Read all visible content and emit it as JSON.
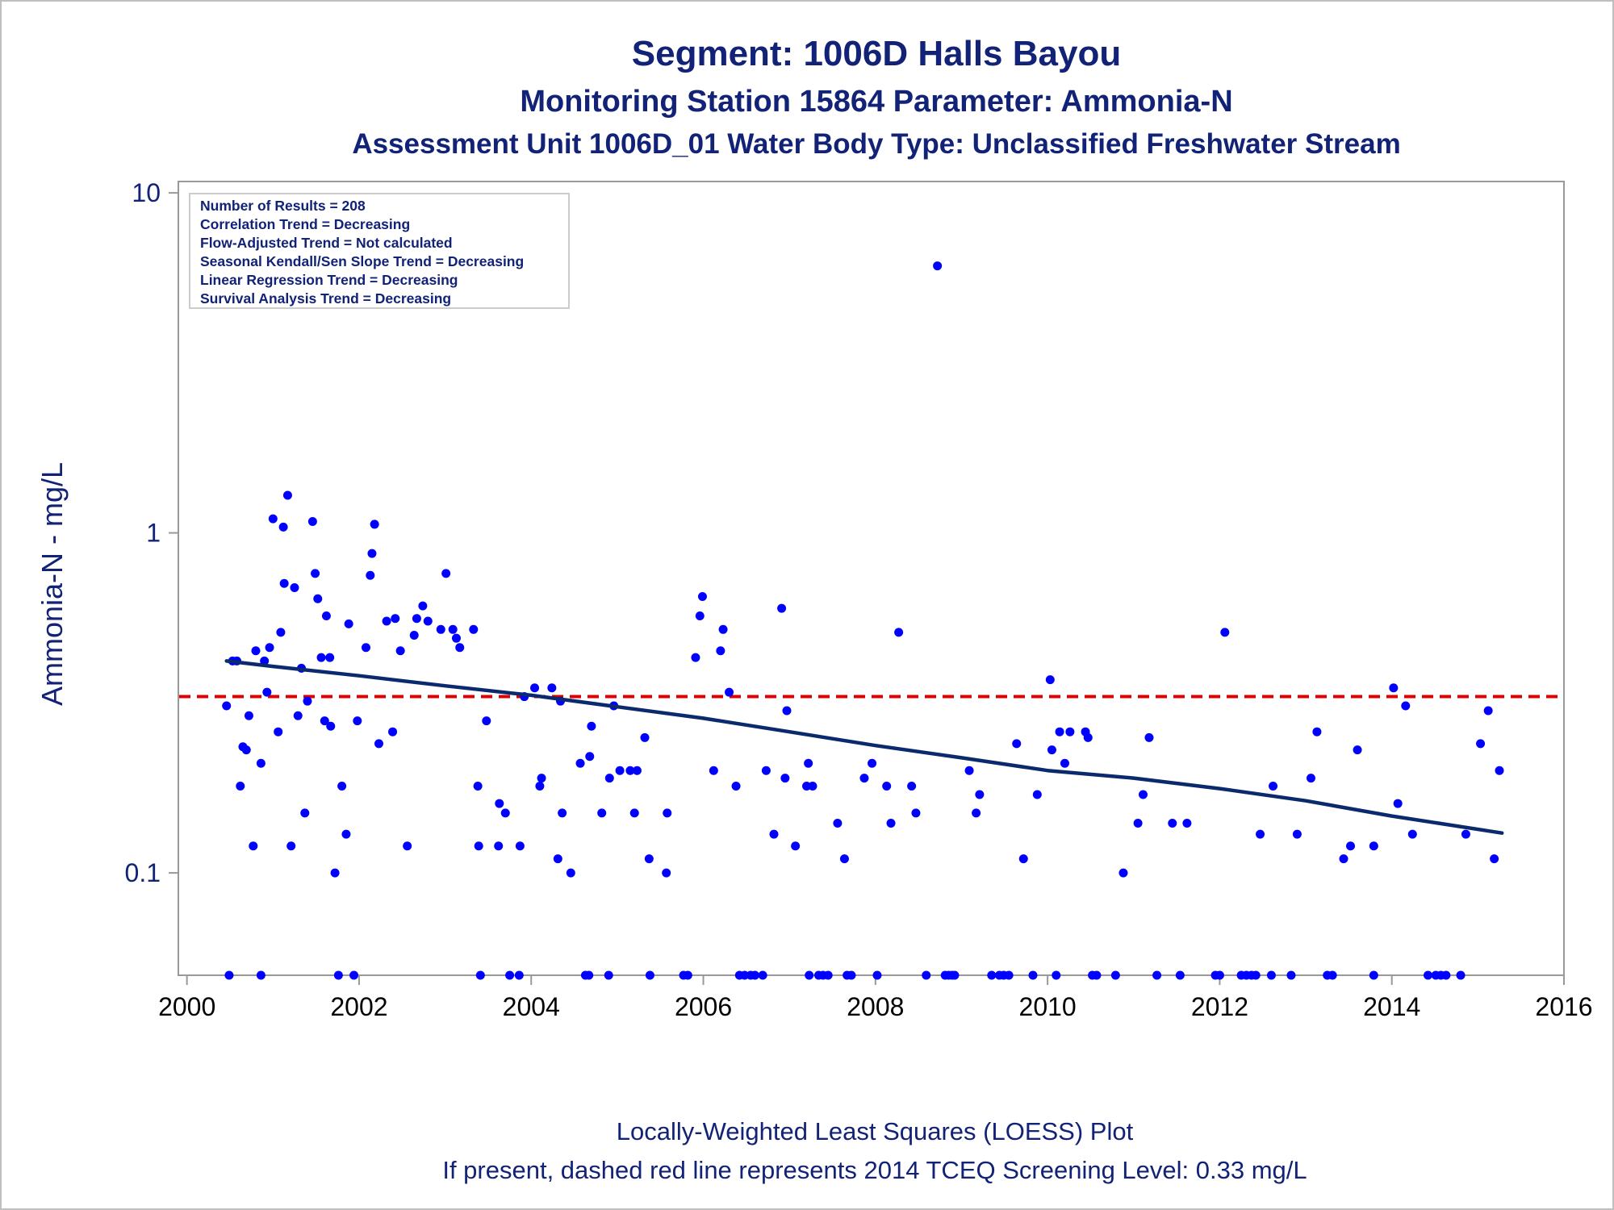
{
  "titles": {
    "line1": "Segment: 1006D  Halls Bayou",
    "line2": "Monitoring Station 15864 Parameter: Ammonia-N",
    "line3": "Assessment Unit 1006D_01   Water Body Type: Unclassified Freshwater Stream"
  },
  "footer": {
    "line1": "Locally-Weighted Least Squares (LOESS) Plot",
    "line2": "If present, dashed red line represents 2014 TCEQ Screening Level: 0.33 mg/L"
  },
  "legend_box": {
    "lines": [
      "Number of Results = 208",
      "Correlation Trend = Decreasing",
      "Flow-Adjusted Trend = Not calculated",
      "Seasonal Kendall/Sen Slope Trend = Decreasing",
      "Linear Regression Trend = Decreasing",
      "Survival Analysis Trend = Decreasing"
    ]
  },
  "colors": {
    "points": "#0000ff",
    "loess": "#0b2a6e",
    "screening": "#dd0000",
    "text": "#112277"
  },
  "chart_data": {
    "type": "scatter",
    "xlabel": "",
    "ylabel": "Ammonia-N - mg/L",
    "xlim": [
      1999.9,
      2016.0
    ],
    "ylim": [
      0.05,
      10.8
    ],
    "y_scale": "log",
    "x_ticks": [
      2000,
      2002,
      2004,
      2006,
      2008,
      2010,
      2012,
      2014,
      2016
    ],
    "x_tick_labels": [
      "2000",
      "2002",
      "2004",
      "2006",
      "2008",
      "2010",
      "2012",
      "2014",
      "2016"
    ],
    "y_ticks": [
      0.1,
      1,
      10
    ],
    "y_tick_labels": [
      "0.1",
      "1",
      "10"
    ],
    "screening_level": 0.33,
    "grid": false,
    "legend_position": "top-left",
    "series": [
      {
        "kind": "scatter",
        "points": [
          [
            2000.46,
            0.31
          ],
          [
            2000.53,
            0.42
          ],
          [
            2000.58,
            0.42
          ],
          [
            2000.62,
            0.18
          ],
          [
            2000.65,
            0.235
          ],
          [
            2000.69,
            0.23
          ],
          [
            2000.72,
            0.29
          ],
          [
            2000.77,
            0.12
          ],
          [
            2000.8,
            0.45
          ],
          [
            2000.86,
            0.21
          ],
          [
            2000.9,
            0.42
          ],
          [
            2000.93,
            0.34
          ],
          [
            2000.96,
            0.46
          ],
          [
            2001.0,
            1.1
          ],
          [
            2001.06,
            0.26
          ],
          [
            2001.09,
            0.51
          ],
          [
            2001.12,
            1.04
          ],
          [
            2001.13,
            0.71
          ],
          [
            2001.17,
            1.29
          ],
          [
            2001.21,
            0.12
          ],
          [
            2001.25,
            0.69
          ],
          [
            2001.29,
            0.29
          ],
          [
            2001.33,
            0.4
          ],
          [
            2001.37,
            0.15
          ],
          [
            2001.4,
            0.32
          ],
          [
            2001.46,
            1.08
          ],
          [
            2001.49,
            0.76
          ],
          [
            2001.52,
            0.64
          ],
          [
            2001.56,
            0.43
          ],
          [
            2001.6,
            0.28
          ],
          [
            2001.62,
            0.57
          ],
          [
            2001.66,
            0.43
          ],
          [
            2001.67,
            0.27
          ],
          [
            2001.72,
            0.1
          ],
          [
            2001.8,
            0.18
          ],
          [
            2001.85,
            0.13
          ],
          [
            2001.88,
            0.54
          ],
          [
            2001.98,
            0.28
          ],
          [
            2002.08,
            0.46
          ],
          [
            2002.13,
            0.75
          ],
          [
            2002.15,
            0.87
          ],
          [
            2002.18,
            1.06
          ],
          [
            2002.23,
            0.24
          ],
          [
            2002.32,
            0.55
          ],
          [
            2002.39,
            0.26
          ],
          [
            2002.42,
            0.56
          ],
          [
            2002.48,
            0.45
          ],
          [
            2002.56,
            0.12
          ],
          [
            2002.64,
            0.5
          ],
          [
            2002.67,
            0.56
          ],
          [
            2002.74,
            0.61
          ],
          [
            2002.8,
            0.55
          ],
          [
            2002.95,
            0.52
          ],
          [
            2003.01,
            0.76
          ],
          [
            2003.09,
            0.52
          ],
          [
            2003.13,
            0.49
          ],
          [
            2003.17,
            0.46
          ],
          [
            2003.33,
            0.52
          ],
          [
            2003.38,
            0.18
          ],
          [
            2003.39,
            0.12
          ],
          [
            2003.48,
            0.28
          ],
          [
            2003.62,
            0.12
          ],
          [
            2003.63,
            0.16
          ],
          [
            2003.7,
            0.15
          ],
          [
            2003.87,
            0.12
          ],
          [
            2003.92,
            0.33
          ],
          [
            2004.04,
            0.35
          ],
          [
            2004.1,
            0.18
          ],
          [
            2004.12,
            0.19
          ],
          [
            2004.24,
            0.35
          ],
          [
            2004.31,
            0.11
          ],
          [
            2004.34,
            0.32
          ],
          [
            2004.36,
            0.15
          ],
          [
            2004.46,
            0.1
          ],
          [
            2004.57,
            0.21
          ],
          [
            2004.68,
            0.22
          ],
          [
            2004.7,
            0.27
          ],
          [
            2004.82,
            0.15
          ],
          [
            2004.91,
            0.19
          ],
          [
            2004.96,
            0.31
          ],
          [
            2005.03,
            0.2
          ],
          [
            2005.15,
            0.2
          ],
          [
            2005.2,
            0.15
          ],
          [
            2005.23,
            0.2
          ],
          [
            2005.32,
            0.25
          ],
          [
            2005.37,
            0.11
          ],
          [
            2005.57,
            0.1
          ],
          [
            2005.58,
            0.15
          ],
          [
            2005.91,
            0.43
          ],
          [
            2005.96,
            0.57
          ],
          [
            2005.99,
            0.65
          ],
          [
            2006.12,
            0.2
          ],
          [
            2006.2,
            0.45
          ],
          [
            2006.23,
            0.52
          ],
          [
            2006.3,
            0.34
          ],
          [
            2006.38,
            0.18
          ],
          [
            2006.73,
            0.2
          ],
          [
            2006.82,
            0.13
          ],
          [
            2006.91,
            0.6
          ],
          [
            2006.95,
            0.19
          ],
          [
            2006.97,
            0.3
          ],
          [
            2007.07,
            0.12
          ],
          [
            2007.2,
            0.18
          ],
          [
            2007.22,
            0.21
          ],
          [
            2007.27,
            0.18
          ],
          [
            2007.56,
            0.14
          ],
          [
            2007.64,
            0.11
          ],
          [
            2007.87,
            0.19
          ],
          [
            2007.96,
            0.21
          ],
          [
            2008.13,
            0.18
          ],
          [
            2008.18,
            0.14
          ],
          [
            2008.27,
            0.51
          ],
          [
            2008.42,
            0.18
          ],
          [
            2008.47,
            0.15
          ],
          [
            2008.72,
            6.1
          ],
          [
            2009.09,
            0.2
          ],
          [
            2009.17,
            0.15
          ],
          [
            2009.21,
            0.17
          ],
          [
            2009.64,
            0.24
          ],
          [
            2009.72,
            0.11
          ],
          [
            2009.88,
            0.17
          ],
          [
            2010.03,
            0.37
          ],
          [
            2010.05,
            0.23
          ],
          [
            2010.14,
            0.26
          ],
          [
            2010.2,
            0.21
          ],
          [
            2010.26,
            0.26
          ],
          [
            2010.44,
            0.26
          ],
          [
            2010.47,
            0.25
          ],
          [
            2010.88,
            0.1
          ],
          [
            2011.05,
            0.14
          ],
          [
            2011.11,
            0.17
          ],
          [
            2011.18,
            0.25
          ],
          [
            2011.45,
            0.14
          ],
          [
            2011.62,
            0.14
          ],
          [
            2012.06,
            0.51
          ],
          [
            2012.47,
            0.13
          ],
          [
            2012.62,
            0.18
          ],
          [
            2012.9,
            0.13
          ],
          [
            2013.06,
            0.19
          ],
          [
            2013.13,
            0.26
          ],
          [
            2013.44,
            0.11
          ],
          [
            2013.52,
            0.12
          ],
          [
            2013.6,
            0.23
          ],
          [
            2013.79,
            0.12
          ],
          [
            2014.02,
            0.35
          ],
          [
            2014.07,
            0.16
          ],
          [
            2014.16,
            0.31
          ],
          [
            2014.24,
            0.13
          ],
          [
            2014.86,
            0.13
          ],
          [
            2015.03,
            0.24
          ],
          [
            2015.12,
            0.3
          ],
          [
            2015.19,
            0.11
          ],
          [
            2015.25,
            0.2
          ]
        ]
      },
      {
        "kind": "scatter",
        "note_free_points_at_floor": true,
        "points": [
          [
            2000.49,
            0.05
          ],
          [
            2000.86,
            0.05
          ],
          [
            2001.76,
            0.05
          ],
          [
            2001.94,
            0.05
          ],
          [
            2003.41,
            0.05
          ],
          [
            2003.75,
            0.05
          ],
          [
            2003.86,
            0.05
          ],
          [
            2004.63,
            0.05
          ],
          [
            2004.67,
            0.05
          ],
          [
            2004.9,
            0.05
          ],
          [
            2005.38,
            0.05
          ],
          [
            2005.77,
            0.05
          ],
          [
            2005.82,
            0.05
          ],
          [
            2006.42,
            0.05
          ],
          [
            2006.48,
            0.05
          ],
          [
            2006.55,
            0.05
          ],
          [
            2006.6,
            0.05
          ],
          [
            2006.69,
            0.05
          ],
          [
            2007.23,
            0.05
          ],
          [
            2007.34,
            0.05
          ],
          [
            2007.39,
            0.05
          ],
          [
            2007.45,
            0.05
          ],
          [
            2007.67,
            0.05
          ],
          [
            2007.72,
            0.05
          ],
          [
            2008.02,
            0.05
          ],
          [
            2008.59,
            0.05
          ],
          [
            2008.81,
            0.05
          ],
          [
            2008.85,
            0.05
          ],
          [
            2008.89,
            0.05
          ],
          [
            2008.92,
            0.05
          ],
          [
            2009.35,
            0.05
          ],
          [
            2009.44,
            0.05
          ],
          [
            2009.49,
            0.05
          ],
          [
            2009.55,
            0.05
          ],
          [
            2009.83,
            0.05
          ],
          [
            2010.1,
            0.05
          ],
          [
            2010.52,
            0.05
          ],
          [
            2010.57,
            0.05
          ],
          [
            2010.79,
            0.05
          ],
          [
            2011.27,
            0.05
          ],
          [
            2011.54,
            0.05
          ],
          [
            2011.95,
            0.05
          ],
          [
            2012.0,
            0.05
          ],
          [
            2012.25,
            0.05
          ],
          [
            2012.31,
            0.05
          ],
          [
            2012.37,
            0.05
          ],
          [
            2012.42,
            0.05
          ],
          [
            2012.6,
            0.05
          ],
          [
            2012.83,
            0.05
          ],
          [
            2013.25,
            0.05
          ],
          [
            2013.31,
            0.05
          ],
          [
            2013.79,
            0.05
          ],
          [
            2014.42,
            0.05
          ],
          [
            2014.51,
            0.05
          ],
          [
            2014.57,
            0.05
          ],
          [
            2014.63,
            0.05
          ],
          [
            2014.8,
            0.05
          ]
        ]
      },
      {
        "kind": "line",
        "points": [
          [
            2000.46,
            0.42
          ],
          [
            2001.0,
            0.405
          ],
          [
            2002.0,
            0.38
          ],
          [
            2003.0,
            0.355
          ],
          [
            2004.0,
            0.333
          ],
          [
            2005.0,
            0.308
          ],
          [
            2006.0,
            0.285
          ],
          [
            2007.0,
            0.26
          ],
          [
            2008.0,
            0.237
          ],
          [
            2009.0,
            0.218
          ],
          [
            2010.0,
            0.2
          ],
          [
            2011.0,
            0.19
          ],
          [
            2012.0,
            0.177
          ],
          [
            2013.0,
            0.163
          ],
          [
            2014.0,
            0.147
          ],
          [
            2015.28,
            0.131
          ]
        ]
      }
    ]
  }
}
